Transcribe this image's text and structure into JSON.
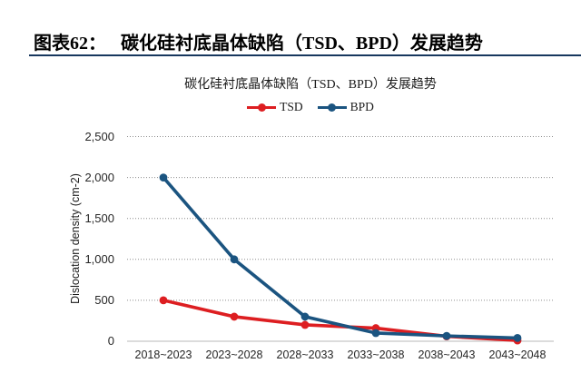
{
  "header": {
    "figure_label": "图表62：",
    "title": "碳化硅衬底晶体缺陷（TSD、BPD）发展趋势"
  },
  "chart_data": {
    "type": "line",
    "title": "碳化硅衬底晶体缺陷（TSD、BPD）发展趋势",
    "xlabel": "",
    "ylabel": "Dislocation density (cm-2)",
    "categories": [
      "2018~2023",
      "2023~2028",
      "2028~2033",
      "2033~2038",
      "2038~2043",
      "2043~2048"
    ],
    "series": [
      {
        "name": "TSD",
        "color": "#dd1e21",
        "values": [
          500,
          300,
          200,
          160,
          60,
          10
        ]
      },
      {
        "name": "BPD",
        "color": "#1b5480",
        "values": [
          2000,
          1000,
          300,
          100,
          65,
          40
        ]
      }
    ],
    "ylim": [
      0,
      2500
    ],
    "ytick_step": 500,
    "ytick_labels": [
      "0",
      "500",
      "1,000",
      "1,500",
      "2,000",
      "2,500"
    ],
    "grid": "horizontal-dotted",
    "legend_position": "top-center"
  },
  "colors": {
    "header_rule": "#17375e",
    "gridline": "#8c8c8c",
    "axis_line": "#c6c6c6"
  }
}
